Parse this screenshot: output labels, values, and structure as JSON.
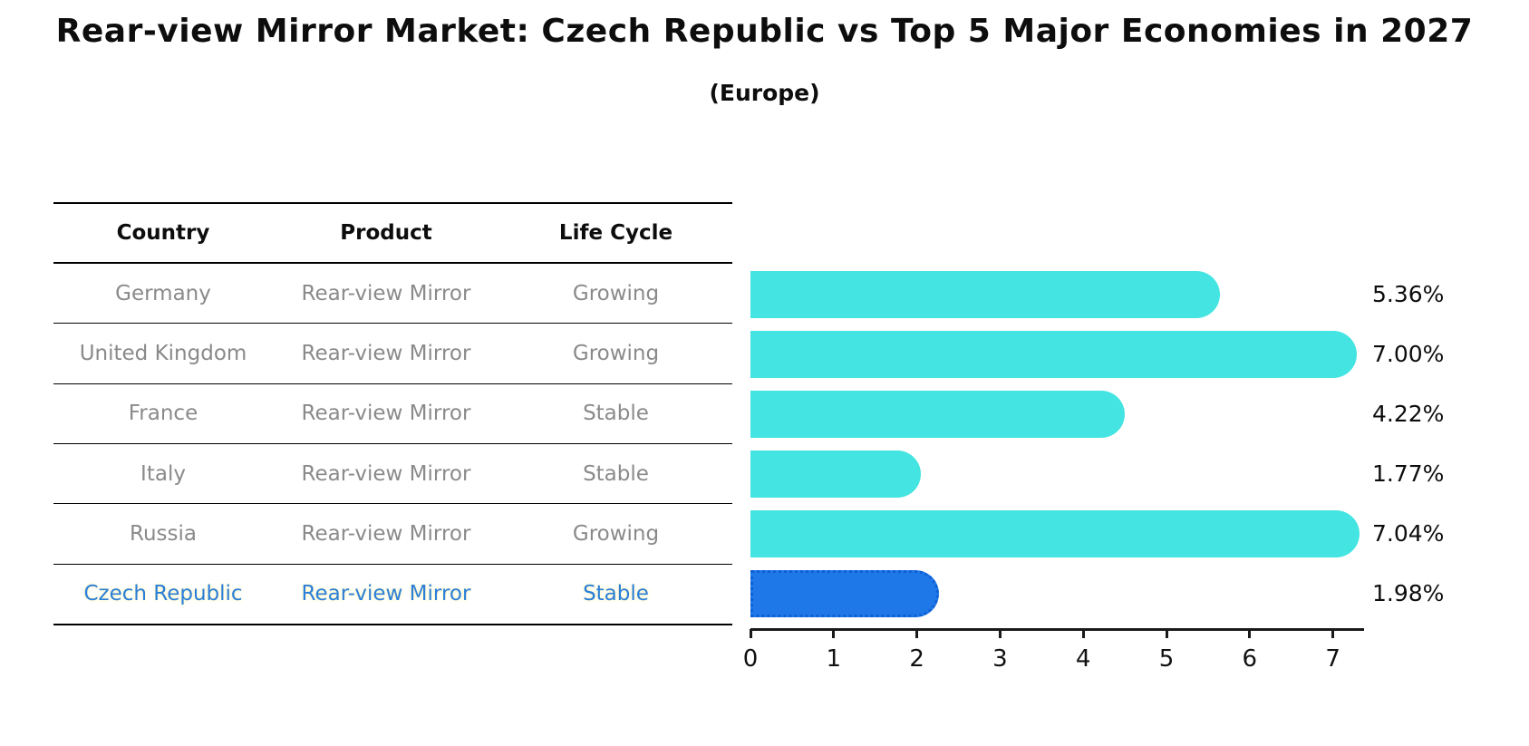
{
  "header": {
    "title": "Rear-view Mirror Market: Czech Republic vs Top 5 Major Economies in 2027",
    "subtitle": "(Europe)"
  },
  "table": {
    "columns": [
      "Country",
      "Product",
      "Life Cycle"
    ],
    "rows": [
      {
        "country": "Germany",
        "product": "Rear-view Mirror",
        "life_cycle": "Growing",
        "highlight": false
      },
      {
        "country": "United Kingdom",
        "product": "Rear-view Mirror",
        "life_cycle": "Growing",
        "highlight": false
      },
      {
        "country": "France",
        "product": "Rear-view Mirror",
        "life_cycle": "Stable",
        "highlight": false
      },
      {
        "country": "Italy",
        "product": "Rear-view Mirror",
        "life_cycle": "Stable",
        "highlight": false
      },
      {
        "country": "Russia",
        "product": "Rear-view Mirror",
        "life_cycle": "Growing",
        "highlight": false
      },
      {
        "country": "Czech Republic",
        "product": "Rear-view Mirror",
        "life_cycle": "Stable",
        "highlight": true
      }
    ]
  },
  "chart_data": {
    "type": "bar",
    "orientation": "horizontal",
    "title": "Rear-view Mirror Market: Czech Republic vs Top 5 Major Economies in 2027 (Europe)",
    "categories": [
      "Germany",
      "United Kingdom",
      "France",
      "Italy",
      "Russia",
      "Czech Republic"
    ],
    "values": [
      5.36,
      7.0,
      4.22,
      1.77,
      7.04,
      1.98
    ],
    "value_labels": [
      "5.36%",
      "7.00%",
      "4.22%",
      "1.77%",
      "7.04%",
      "1.98%"
    ],
    "highlight_index": 5,
    "xlabel": "",
    "ylabel": "",
    "xticks": [
      "0",
      "1",
      "2",
      "3",
      "4",
      "5",
      "6",
      "7"
    ],
    "xlim": [
      0,
      7.35
    ],
    "grid": false,
    "legend": "none",
    "bar_color": "#43e4e1",
    "highlight_bar_color": "#1e78e8",
    "highlight_text_color": "#2b7fd9",
    "table_text_color": "#8a8a8a"
  }
}
